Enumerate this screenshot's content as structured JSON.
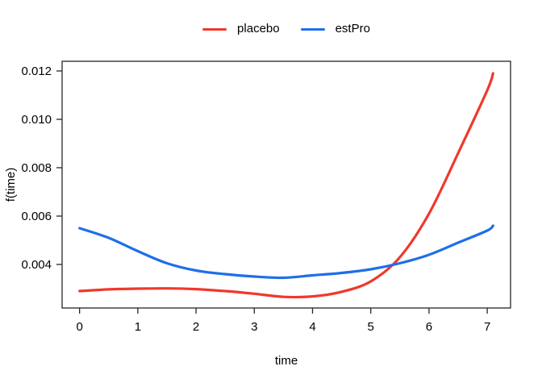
{
  "chart_data": {
    "type": "line",
    "title": "",
    "xlabel": "time",
    "ylabel": "f(time)",
    "xlim": [
      -0.3,
      7.4
    ],
    "ylim": [
      0.0022,
      0.0124
    ],
    "grid": false,
    "legend_position": "top-center",
    "xticks": [
      0,
      1,
      2,
      3,
      4,
      5,
      6,
      7
    ],
    "xtick_labels": [
      "0",
      "1",
      "2",
      "3",
      "4",
      "5",
      "6",
      "7"
    ],
    "yticks": [
      0.004,
      0.006,
      0.008,
      0.01,
      0.012
    ],
    "ytick_labels": [
      "0.004",
      "0.006",
      "0.008",
      "0.010",
      "0.012"
    ],
    "x": [
      0,
      0.5,
      1,
      1.5,
      2,
      2.5,
      3,
      3.5,
      4,
      4.5,
      5,
      5.5,
      6,
      6.5,
      7,
      7.1
    ],
    "series": [
      {
        "name": "placebo",
        "color": "#f0382b",
        "values": [
          0.0029,
          0.00297,
          0.003,
          0.00301,
          0.00298,
          0.0029,
          0.00279,
          0.00266,
          0.00268,
          0.00287,
          0.0033,
          0.0043,
          0.0061,
          0.0086,
          0.0112,
          0.0119
        ]
      },
      {
        "name": "estPro",
        "color": "#1e6fe8",
        "values": [
          0.0055,
          0.0051,
          0.00455,
          0.00405,
          0.00375,
          0.0036,
          0.0035,
          0.00345,
          0.00355,
          0.00365,
          0.0038,
          0.00405,
          0.0044,
          0.0049,
          0.0054,
          0.0056
        ]
      }
    ],
    "axis_color": "#262626",
    "text_color": "#000000"
  }
}
